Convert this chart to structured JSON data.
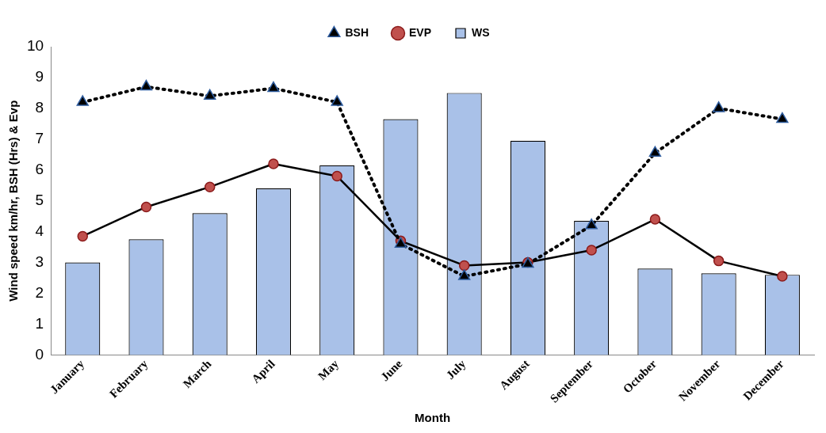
{
  "chart_data": {
    "type": "bar",
    "xlabel": "Month",
    "ylabel": "Wind speed km/hr, BSH (Hrs) & Evp",
    "categories": [
      "January",
      "February",
      "March",
      "April",
      "May",
      "June",
      "July",
      "August",
      "September",
      "October",
      "November",
      "December"
    ],
    "series": [
      {
        "name": "WS",
        "color": "#a9c1e8",
        "values": [
          3.0,
          3.75,
          4.6,
          5.4,
          6.15,
          7.65,
          8.5,
          6.95,
          4.35,
          2.8,
          2.65,
          2.6
        ]
      },
      {
        "name": "BSH",
        "type": "line",
        "color": "#000000",
        "marker": "triangle",
        "line_style": "dotted",
        "values": [
          8.2,
          8.7,
          8.4,
          8.65,
          8.2,
          3.6,
          2.55,
          2.95,
          4.2,
          6.55,
          8.0,
          7.65
        ]
      },
      {
        "name": "EVP",
        "type": "line",
        "color": "#000000",
        "marker": "circle",
        "line_style": "solid",
        "values": [
          3.85,
          4.8,
          5.45,
          6.2,
          5.8,
          3.7,
          2.9,
          3.0,
          3.4,
          4.4,
          3.05,
          2.55
        ]
      }
    ],
    "ylim": [
      0,
      10
    ],
    "yticks": [
      0,
      1,
      2,
      3,
      4,
      5,
      6,
      7,
      8,
      9,
      10
    ],
    "grid": false,
    "legend": "top"
  }
}
